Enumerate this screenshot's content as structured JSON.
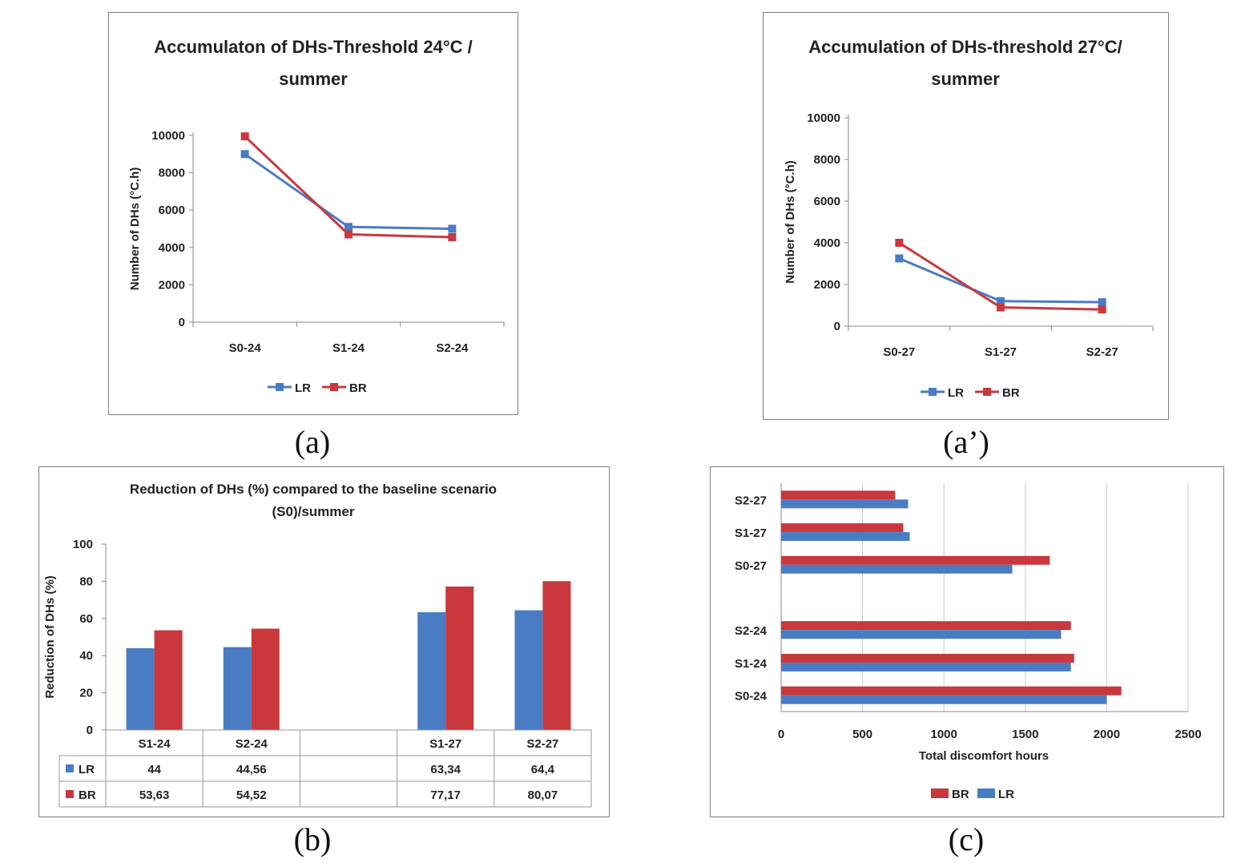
{
  "colors": {
    "LR": "#4a7cc4",
    "BR": "#c8383d"
  },
  "figure_labels": {
    "a": "(a)",
    "a2": "(a’)",
    "b": "(b)",
    "c": "(c)"
  },
  "chart_data": [
    {
      "id": "a",
      "type": "line",
      "title_lines": [
        "Accumulaton of DHs-Threshold 24°C /",
        "summer"
      ],
      "ylabel": "Number of DHs (°C.h)",
      "xlabel": "",
      "ylim": [
        0,
        10000
      ],
      "yticks": [
        0,
        2000,
        4000,
        6000,
        8000,
        10000
      ],
      "categories": [
        "S0-24",
        "S1-24",
        "S2-24"
      ],
      "series": [
        {
          "name": "LR",
          "values": [
            9000,
            5100,
            5000
          ]
        },
        {
          "name": "BR",
          "values": [
            9950,
            4700,
            4550
          ]
        }
      ],
      "legend": [
        "LR",
        "BR"
      ]
    },
    {
      "id": "a2",
      "type": "line",
      "title_lines": [
        "Accumulation of DHs-threshold 27°C/",
        "summer"
      ],
      "ylabel": "Number of DHs (°C.h)",
      "xlabel": "",
      "ylim": [
        0,
        10000
      ],
      "yticks": [
        0,
        2000,
        4000,
        6000,
        8000,
        10000
      ],
      "categories": [
        "S0-27",
        "S1-27",
        "S2-27"
      ],
      "series": [
        {
          "name": "LR",
          "values": [
            3250,
            1200,
            1150
          ]
        },
        {
          "name": "BR",
          "values": [
            4000,
            900,
            800
          ]
        }
      ],
      "legend": [
        "LR",
        "BR"
      ]
    },
    {
      "id": "b",
      "type": "bar",
      "title_lines": [
        "Reduction of DHs (%) compared to the baseline scenario",
        "(S0)/summer"
      ],
      "ylabel": "Reduction of DHs (%)",
      "ylim": [
        0,
        100
      ],
      "yticks": [
        0,
        20,
        40,
        60,
        80,
        100
      ],
      "categories": [
        "S1-24",
        "S2-24",
        "",
        "S1-27",
        "S2-27"
      ],
      "series": [
        {
          "name": "LR",
          "values": [
            44,
            44.56,
            null,
            63.34,
            64.4
          ],
          "labels": [
            "44",
            "44,56",
            "",
            "63,34",
            "64,4"
          ]
        },
        {
          "name": "BR",
          "values": [
            53.63,
            54.52,
            null,
            77.17,
            80.07
          ],
          "labels": [
            "53,63",
            "54,52",
            "",
            "77,17",
            "80,07"
          ]
        }
      ]
    },
    {
      "id": "c",
      "type": "bar",
      "orientation": "horizontal",
      "xlabel": "Total discomfort hours",
      "xlim": [
        0,
        2500
      ],
      "xticks": [
        0,
        500,
        1000,
        1500,
        2000,
        2500
      ],
      "categories": [
        "S2-27",
        "S1-27",
        "S0-27",
        "",
        "S2-24",
        "S1-24",
        "S0-24"
      ],
      "series": [
        {
          "name": "BR",
          "values": [
            700,
            750,
            1650,
            null,
            1780,
            1800,
            2090
          ]
        },
        {
          "name": "LR",
          "values": [
            780,
            790,
            1420,
            null,
            1720,
            1780,
            2000
          ]
        }
      ],
      "legend": [
        "BR",
        "LR"
      ]
    }
  ]
}
